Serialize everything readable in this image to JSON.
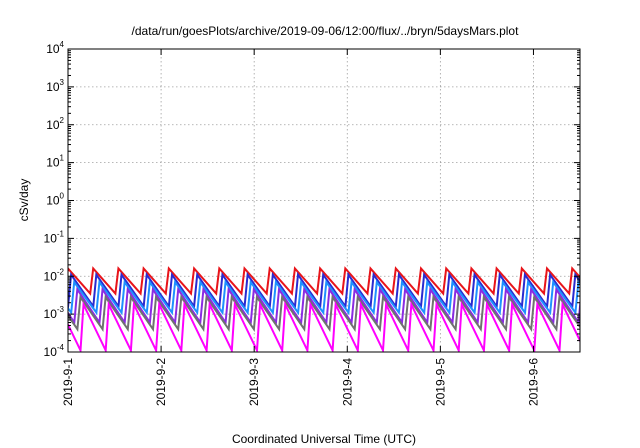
{
  "chart_data": {
    "type": "line",
    "title": "/data/run/goesPlots/archive/2019-09-06/12:00/flux/../bryn/5daysMars.plot",
    "xlabel": "Coordinated Universal Time (UTC)",
    "ylabel": "cSv/day",
    "yscale": "log",
    "ylim": [
      0.0001,
      10000
    ],
    "xlim": [
      "2019-09-01T00:00",
      "2019-09-06T12:00"
    ],
    "grid": true,
    "x_ticks": [
      "2019-9-1",
      "2019-9-2",
      "2019-9-3",
      "2019-9-4",
      "2019-9-5",
      "2019-9-6"
    ],
    "y_ticks": [
      {
        "base": "10",
        "exp": "-4"
      },
      {
        "base": "10",
        "exp": "-3"
      },
      {
        "base": "10",
        "exp": "-2"
      },
      {
        "base": "10",
        "exp": "-1"
      },
      {
        "base": "10",
        "exp": "0"
      },
      {
        "base": "10",
        "exp": "1"
      },
      {
        "base": "10",
        "exp": "2"
      },
      {
        "base": "10",
        "exp": "3"
      },
      {
        "base": "10",
        "exp": "4"
      }
    ],
    "sawtooth_period_hours": 6.5,
    "series": [
      {
        "color": "#e8141a",
        "peak": 0.016,
        "trough": 0.0035,
        "phase_hours": 0.0
      },
      {
        "color": "#2a2ad0",
        "peak": 0.011,
        "trough": 0.0016,
        "phase_hours": 0.8
      },
      {
        "color": "#1e90ff",
        "peak": 0.007,
        "trough": 0.0011,
        "phase_hours": 1.6
      },
      {
        "color": "#8a2be2",
        "peak": 0.0045,
        "trough": 0.0006,
        "phase_hours": 2.4
      },
      {
        "color": "#707070",
        "peak": 0.0028,
        "trough": 0.0004,
        "phase_hours": 3.2
      },
      {
        "color": "#ff00ff",
        "peak": 0.0018,
        "trough": 0.00011,
        "phase_hours": 4.0
      }
    ]
  }
}
